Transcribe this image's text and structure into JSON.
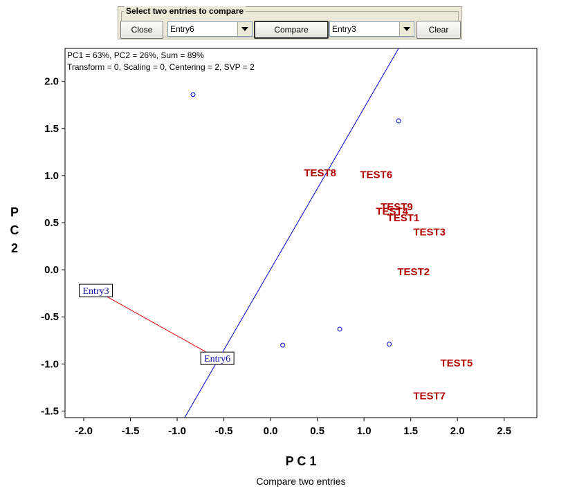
{
  "toolbar": {
    "group_label": "Select two entries to compare",
    "close_label": "Close",
    "compare_label": "Compare",
    "clear_label": "Clear",
    "entry_a_value": "Entry6",
    "entry_b_value": "Entry3"
  },
  "colors": {
    "test_label": "#b00000",
    "point": "#0000dd",
    "axis_line": "#0000cc",
    "compare_line": "#dd0000",
    "entry_label": "#1010a0"
  },
  "chart_data": {
    "type": "scatter",
    "info_line1": "PC1 = 63%, PC2 = 26%, Sum = 89%",
    "info_line2": "Transform = 0, Scaling = 0, Centering = 2, SVP = 2",
    "xlabel": "P C 1",
    "ylabel": "P C 2",
    "caption": "Compare two entries",
    "xlim": [
      -2.2,
      2.85
    ],
    "ylim": [
      -1.57,
      2.35
    ],
    "xticks": [
      "-2.0",
      "-1.5",
      "-1.0",
      "-0.5",
      "0.0",
      "0.5",
      "1.0",
      "1.5",
      "2.0",
      "2.5"
    ],
    "yticks": [
      "2.0",
      "1.5",
      "1.0",
      "0.5",
      "0.0",
      "-0.5",
      "-1.0",
      "-1.5"
    ],
    "grid": false,
    "entries": [
      {
        "name": "Entry3",
        "x": -1.87,
        "y": -0.22
      },
      {
        "name": "Entry6",
        "x": -0.57,
        "y": -0.94
      }
    ],
    "entry_points_unlabeled": [
      {
        "x": -0.83,
        "y": 1.86
      },
      {
        "x": 1.37,
        "y": 1.58
      },
      {
        "x": 0.74,
        "y": -0.63
      },
      {
        "x": 0.13,
        "y": -0.8
      },
      {
        "x": 1.27,
        "y": -0.79
      }
    ],
    "tests": [
      {
        "name": "TEST8",
        "x": 0.53,
        "y": 1.03
      },
      {
        "name": "TEST6",
        "x": 1.13,
        "y": 1.01
      },
      {
        "name": "TEST9",
        "x": 1.35,
        "y": 0.67
      },
      {
        "name": "TEST4",
        "x": 1.3,
        "y": 0.62
      },
      {
        "name": "TEST1",
        "x": 1.42,
        "y": 0.55
      },
      {
        "name": "TEST3",
        "x": 1.7,
        "y": 0.4
      },
      {
        "name": "TEST2",
        "x": 1.53,
        "y": -0.02
      },
      {
        "name": "TEST5",
        "x": 1.99,
        "y": -0.99
      },
      {
        "name": "TEST7",
        "x": 1.7,
        "y": -1.34
      }
    ],
    "compare_axis": [
      {
        "x": -0.92,
        "y": -1.57
      },
      {
        "x": 1.37,
        "y": 2.35
      }
    ],
    "compare_segment": [
      {
        "x": -1.87,
        "y": -0.22
      },
      {
        "x": -0.57,
        "y": -0.94
      }
    ]
  }
}
